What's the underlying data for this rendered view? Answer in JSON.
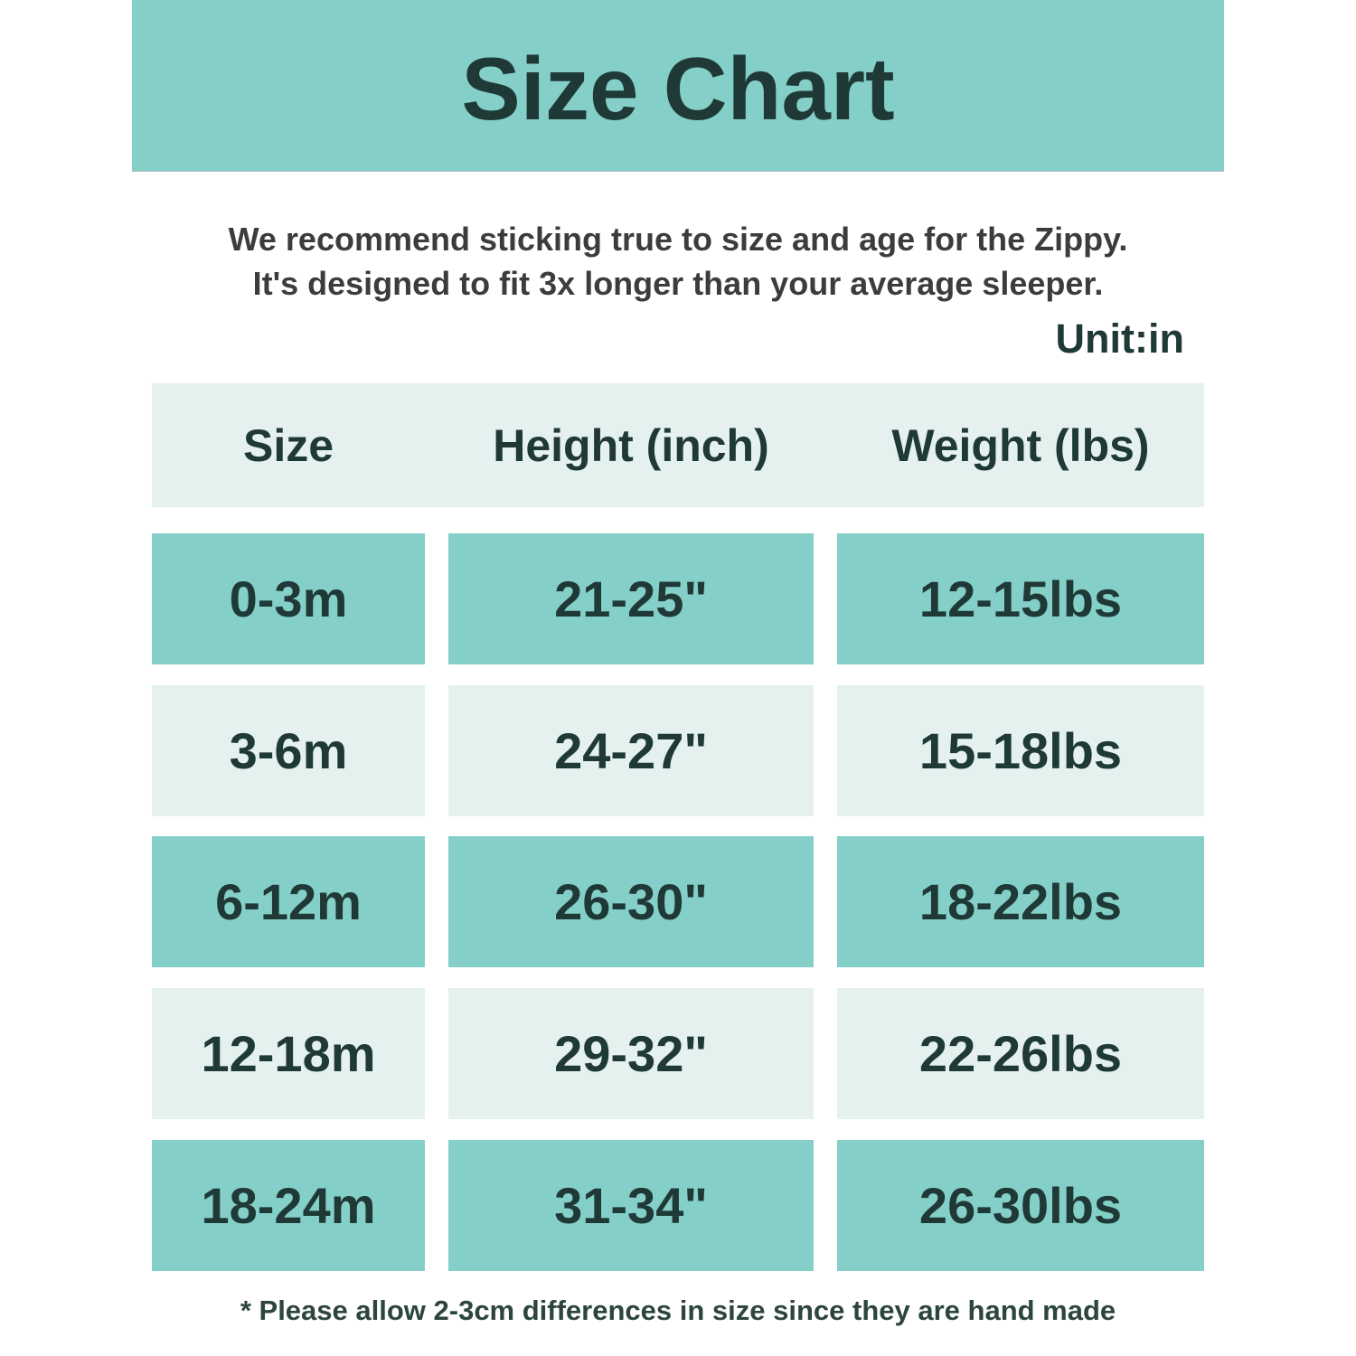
{
  "banner": {
    "title": "Size Chart"
  },
  "intro": {
    "line1": "We recommend sticking true to size and age for the Zippy.",
    "line2": "It's designed to fit 3x longer than your average sleeper."
  },
  "unit_label": "Unit:in",
  "table": {
    "headers": [
      "Size",
      "Height (inch)",
      "Weight (lbs)"
    ],
    "rows": [
      {
        "size": "0-3m",
        "height": "21-25\"",
        "weight": "12-15lbs"
      },
      {
        "size": "3-6m",
        "height": "24-27\"",
        "weight": "15-18lbs"
      },
      {
        "size": "6-12m",
        "height": "26-30\"",
        "weight": "18-22lbs"
      },
      {
        "size": "12-18m",
        "height": "29-32\"",
        "weight": "22-26lbs"
      },
      {
        "size": "18-24m",
        "height": "31-34\"",
        "weight": "26-30lbs"
      }
    ]
  },
  "footnote": "* Please allow 2-3cm differences in size since they are hand made",
  "colors": {
    "teal": "#85cfc9",
    "light_mint": "#e5f1ef",
    "dark_green_text": "#1f3936",
    "body_text": "#3c3c3c"
  },
  "chart_data": {
    "type": "table",
    "title": "Size Chart",
    "unit": "Unit:in",
    "columns": [
      "Size",
      "Height (inch)",
      "Weight (lbs)"
    ],
    "rows": [
      [
        "0-3m",
        "21-25\"",
        "12-15lbs"
      ],
      [
        "3-6m",
        "24-27\"",
        "15-18lbs"
      ],
      [
        "6-12m",
        "26-30\"",
        "18-22lbs"
      ],
      [
        "12-18m",
        "29-32\"",
        "22-26lbs"
      ],
      [
        "18-24m",
        "31-34\"",
        "26-30lbs"
      ]
    ],
    "annotations": [
      "We recommend sticking true to size and age for the Zippy. It's designed to fit 3x longer than your average sleeper.",
      "* Please allow 2-3cm differences in size since they are hand made"
    ],
    "layout_hints": {
      "row_style_alternation": [
        "teal",
        "light_mint"
      ],
      "header_band_color": "light_mint",
      "banner_color": "teal"
    }
  }
}
